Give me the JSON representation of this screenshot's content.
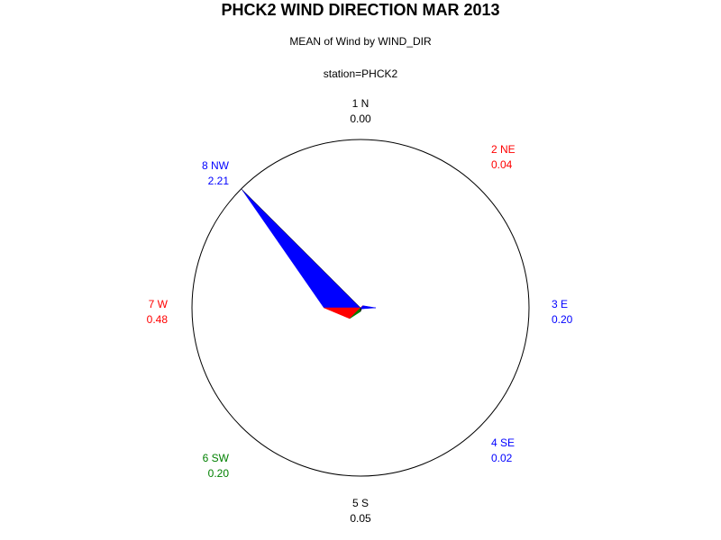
{
  "chart_data": {
    "type": "radar",
    "title": "PHCK2 WIND DIRECTION MAR 2013",
    "subtitle": "MEAN of Wind by WIND_DIR",
    "subtitle2": "station=PHCK2",
    "max_value": 2.21,
    "directions": [
      {
        "label": "1 N",
        "value": 0.0,
        "value_text": "0.00",
        "color": "#000000"
      },
      {
        "label": "2 NE",
        "value": 0.04,
        "value_text": "0.04",
        "color": "#ff0000"
      },
      {
        "label": "3 E",
        "value": 0.2,
        "value_text": "0.20",
        "color": "#0000ff"
      },
      {
        "label": "4 SE",
        "value": 0.02,
        "value_text": "0.02",
        "color": "#0000ff"
      },
      {
        "label": "5 S",
        "value": 0.05,
        "value_text": "0.05",
        "color": "#000000"
      },
      {
        "label": "6 SW",
        "value": 0.2,
        "value_text": "0.20",
        "color": "#008000"
      },
      {
        "label": "7 W",
        "value": 0.48,
        "value_text": "0.48",
        "color": "#ff0000"
      },
      {
        "label": "8 NW",
        "value": 2.21,
        "value_text": "2.21",
        "color": "#0000ff"
      }
    ]
  }
}
